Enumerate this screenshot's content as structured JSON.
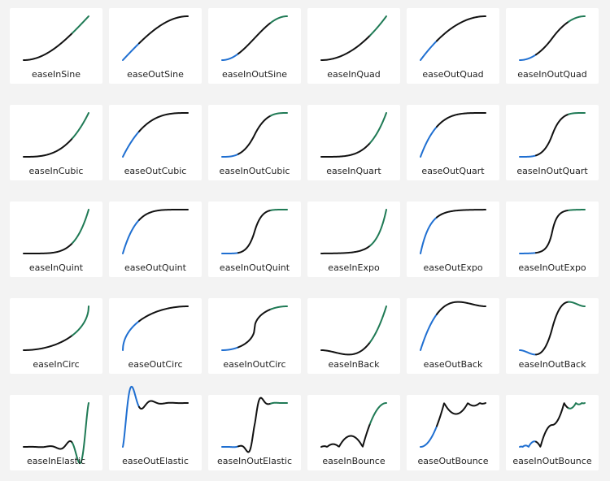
{
  "cards": [
    {
      "label": "easeInSine"
    },
    {
      "label": "easeOutSine"
    },
    {
      "label": "easeInOutSine"
    },
    {
      "label": "easeInQuad"
    },
    {
      "label": "easeOutQuad"
    },
    {
      "label": "easeInOutQuad"
    },
    {
      "label": "easeInCubic"
    },
    {
      "label": "easeOutCubic"
    },
    {
      "label": "easeInOutCubic"
    },
    {
      "label": "easeInQuart"
    },
    {
      "label": "easeOutQuart"
    },
    {
      "label": "easeInOutQuart"
    },
    {
      "label": "easeInQuint"
    },
    {
      "label": "easeOutQuint"
    },
    {
      "label": "easeInOutQuint"
    },
    {
      "label": "easeInExpo"
    },
    {
      "label": "easeOutExpo"
    },
    {
      "label": "easeInOutExpo"
    },
    {
      "label": "easeInCirc"
    },
    {
      "label": "easeOutCirc"
    },
    {
      "label": "easeInOutCirc"
    },
    {
      "label": "easeInBack"
    },
    {
      "label": "easeOutBack"
    },
    {
      "label": "easeInOutBack"
    },
    {
      "label": "easeInElastic"
    },
    {
      "label": "easeOutElastic"
    },
    {
      "label": "easeInOutElastic"
    },
    {
      "label": "easeInBounce"
    },
    {
      "label": "easeOutBounce"
    },
    {
      "label": "easeInOutBounce"
    }
  ]
}
